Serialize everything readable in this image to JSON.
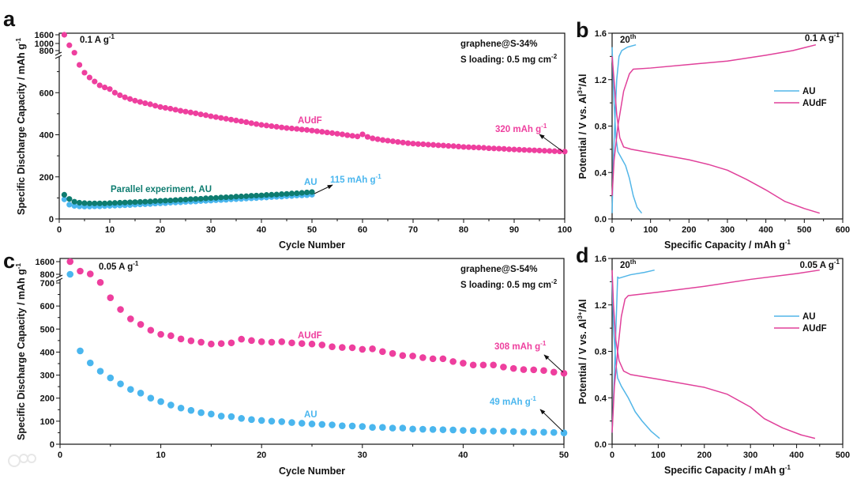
{
  "watermark": "大数跨境",
  "chart_data": [
    {
      "panel": "a",
      "type": "scatter",
      "xlabel": "Cycle Number",
      "ylabel": {
        "pre": "Specific Discharge Capacity / mAh g",
        "sup": "-1"
      },
      "xlim": [
        0,
        100
      ],
      "ylim": [
        0,
        1600
      ],
      "y_axis_break": [
        800,
        1000
      ],
      "x_ticks": [
        0,
        10,
        20,
        30,
        40,
        50,
        60,
        70,
        80,
        90,
        100
      ],
      "y_ticks": [
        0,
        200,
        400,
        600,
        800,
        1000,
        1600
      ],
      "annotations": {
        "rate": {
          "text": "0.1 A g",
          "sup": "-1"
        },
        "material": "graphene@S-34%",
        "loading": {
          "text": "S loading: 0.5 mg cm",
          "sup": "-2"
        },
        "audf_label": "AUdF",
        "audf_final": {
          "text": "320 mAh g",
          "sup": "-1"
        },
        "au_label": "AU",
        "au_final": {
          "text": "115 mAh g",
          "sup": "-1"
        },
        "parallel_label": "Parallel experiment, AU"
      },
      "series": [
        {
          "name": "AU",
          "color": "#4ab6ee",
          "x_start": 1,
          "y": [
            93,
            68,
            62,
            60,
            59,
            59,
            60,
            60,
            61,
            62,
            63,
            64,
            65,
            66,
            68,
            69,
            70,
            71,
            73,
            74,
            75,
            77,
            78,
            79,
            81,
            82,
            83,
            85,
            86,
            87,
            89,
            90,
            91,
            93,
            94,
            95,
            97,
            98,
            99,
            101,
            102,
            104,
            105,
            106,
            108,
            109,
            111,
            112,
            113,
            115
          ]
        },
        {
          "name": "Parallel experiment, AU",
          "color": "#0e7c70",
          "x_start": 1,
          "y": [
            115,
            95,
            82,
            77,
            75,
            74,
            74,
            74,
            74,
            75,
            76,
            77,
            78,
            79,
            80,
            81,
            82,
            83,
            85,
            86,
            87,
            88,
            90,
            91,
            92,
            94,
            95,
            96,
            98,
            99,
            100,
            102,
            103,
            104,
            106,
            107,
            108,
            110,
            111,
            112,
            114,
            115,
            116,
            118,
            119,
            121,
            122,
            124,
            126,
            128
          ]
        },
        {
          "name": "AUdF",
          "color": "#ee3f9e",
          "x_start": 1,
          "y": [
            1600,
            950,
            790,
            732,
            695,
            672,
            653,
            635,
            625,
            617,
            600,
            588,
            578,
            570,
            562,
            556,
            550,
            545,
            538,
            532,
            528,
            524,
            519,
            514,
            510,
            506,
            502,
            497,
            493,
            488,
            484,
            480,
            476,
            472,
            468,
            464,
            460,
            455,
            451,
            447,
            444,
            441,
            438,
            435,
            432,
            430,
            428,
            425,
            423,
            420,
            417,
            414,
            411,
            408,
            405,
            402,
            398,
            395,
            392,
            402,
            390,
            383,
            379,
            375,
            372,
            369,
            366,
            363,
            360,
            358,
            356,
            355,
            353,
            352,
            350,
            349,
            347,
            346,
            344,
            342,
            341,
            340,
            339,
            338,
            336,
            335,
            334,
            333,
            331,
            330,
            329,
            328,
            327,
            326,
            325,
            324,
            323,
            322,
            321,
            320
          ]
        }
      ]
    },
    {
      "panel": "b",
      "type": "line",
      "xlabel": "Specific Capacity  / mAh g-1",
      "xlabel_parts": {
        "pre": "Specific Capacity  / mAh g",
        "sup": "-1"
      },
      "ylabel": {
        "pre": "Potential / V vs. Al",
        "sup": "3+",
        "post": "/Al"
      },
      "xlim": [
        0,
        600
      ],
      "ylim": [
        0,
        1.6
      ],
      "x_ticks": [
        "0",
        "100",
        "200",
        "300",
        "400",
        "500",
        "600"
      ],
      "y_ticks": [
        "0.0",
        "0.4",
        "0.8",
        "1.2",
        "1.6"
      ],
      "annotations": {
        "cycle": {
          "text": "20",
          "sup": "th"
        },
        "rate": {
          "text": "0.1 A g",
          "sup": "-1"
        }
      },
      "legend": {
        "position": "right-center",
        "entries": [
          "AU",
          "AUdF"
        ]
      },
      "series": [
        {
          "name": "AU",
          "color": "#52b6e8",
          "curves": [
            [
              [
                0,
                0.05
              ],
              [
                3,
                0.5
              ],
              [
                8,
                0.9
              ],
              [
                12,
                1.2
              ],
              [
                18,
                1.4
              ],
              [
                25,
                1.45
              ],
              [
                40,
                1.48
              ],
              [
                62,
                1.5
              ]
            ],
            [
              [
                0,
                1.48
              ],
              [
                5,
                1.0
              ],
              [
                10,
                0.7
              ],
              [
                15,
                0.58
              ],
              [
                25,
                0.52
              ],
              [
                35,
                0.46
              ],
              [
                45,
                0.35
              ],
              [
                55,
                0.2
              ],
              [
                65,
                0.1
              ],
              [
                77,
                0.05
              ]
            ]
          ]
        },
        {
          "name": "AUdF",
          "color": "#e0409a",
          "curves": [
            [
              [
                0,
                0.2
              ],
              [
                5,
                0.5
              ],
              [
                15,
                0.8
              ],
              [
                30,
                1.1
              ],
              [
                45,
                1.25
              ],
              [
                55,
                1.29
              ],
              [
                100,
                1.3
              ],
              [
                200,
                1.33
              ],
              [
                300,
                1.36
              ],
              [
                400,
                1.41
              ],
              [
                470,
                1.45
              ],
              [
                530,
                1.5
              ]
            ],
            [
              [
                0,
                1.4
              ],
              [
                5,
                1.2
              ],
              [
                12,
                0.9
              ],
              [
                20,
                0.7
              ],
              [
                30,
                0.62
              ],
              [
                50,
                0.6
              ],
              [
                100,
                0.57
              ],
              [
                200,
                0.51
              ],
              [
                250,
                0.47
              ],
              [
                300,
                0.42
              ],
              [
                350,
                0.34
              ],
              [
                400,
                0.25
              ],
              [
                450,
                0.15
              ],
              [
                500,
                0.09
              ],
              [
                540,
                0.05
              ]
            ]
          ]
        }
      ]
    },
    {
      "panel": "c",
      "type": "scatter",
      "xlabel": "Cycle Number",
      "ylabel": {
        "pre": "Specific Discharge Capacity / mAh g",
        "sup": "-1"
      },
      "xlim": [
        0,
        50
      ],
      "ylim": [
        0,
        1600
      ],
      "y_axis_break": [
        700,
        800
      ],
      "x_ticks": [
        0,
        10,
        20,
        30,
        40,
        50
      ],
      "y_ticks": [
        0,
        100,
        200,
        300,
        400,
        500,
        600,
        700,
        800,
        1600
      ],
      "annotations": {
        "rate": {
          "text": "0.05 A g",
          "sup": "-1"
        },
        "material": "graphene@S-54%",
        "loading": {
          "text": "S loading: 0.5 mg cm",
          "sup": "-2"
        },
        "audf_label": "AUdF",
        "audf_final": {
          "text": "308 mAh g",
          "sup": "-1"
        },
        "au_label": "AU",
        "au_final": {
          "text": "49 mAh g",
          "sup": "-1"
        }
      },
      "series": [
        {
          "name": "AU",
          "color": "#4ab6ee",
          "x_start": 1,
          "y": [
            800,
            405,
            353,
            317,
            288,
            262,
            238,
            222,
            200,
            185,
            170,
            157,
            147,
            137,
            131,
            122,
            120,
            112,
            107,
            103,
            100,
            98,
            94,
            91,
            88,
            86,
            84,
            80,
            79,
            77,
            73,
            73,
            70,
            70,
            66,
            65,
            64,
            63,
            62,
            60,
            59,
            57,
            57,
            57,
            55,
            53,
            52,
            52,
            51,
            49
          ]
        },
        {
          "name": "AUdF",
          "color": "#ee3f9e",
          "x_start": 1,
          "y": [
            1600,
            1000,
            820,
            706,
            636,
            585,
            544,
            520,
            495,
            477,
            471,
            457,
            449,
            443,
            435,
            437,
            440,
            456,
            450,
            445,
            443,
            445,
            440,
            437,
            435,
            431,
            423,
            420,
            419,
            412,
            414,
            402,
            394,
            385,
            383,
            376,
            371,
            371,
            359,
            352,
            344,
            344,
            344,
            335,
            329,
            324,
            323,
            320,
            313,
            308
          ]
        }
      ]
    },
    {
      "panel": "d",
      "type": "line",
      "xlabel_parts": {
        "pre": "Specific Capacity  / mAh g",
        "sup": "-1"
      },
      "ylabel": {
        "pre": "Potential / V vs. Al",
        "sup": "3+",
        "post": "/Al"
      },
      "xlim": [
        0,
        500
      ],
      "ylim": [
        0,
        1.6
      ],
      "x_ticks": [
        "0",
        "100",
        "200",
        "300",
        "400",
        "500"
      ],
      "y_ticks": [
        "0.0",
        "0.4",
        "0.8",
        "1.2",
        "1.6"
      ],
      "annotations": {
        "cycle": {
          "text": "20",
          "sup": "th"
        },
        "rate": {
          "text": "0.05 A g",
          "sup": "-1"
        }
      },
      "legend": {
        "position": "right-center",
        "entries": [
          "AU",
          "AUdF"
        ]
      },
      "series": [
        {
          "name": "AU",
          "color": "#52b6e8",
          "curves": [
            [
              [
                0,
                0.1
              ],
              [
                5,
                0.6
              ],
              [
                10,
                1.2
              ],
              [
                12,
                1.44
              ],
              [
                15,
                1.43
              ],
              [
                40,
                1.46
              ],
              [
                70,
                1.48
              ],
              [
                92,
                1.5
              ]
            ],
            [
              [
                0,
                1.45
              ],
              [
                3,
                1.0
              ],
              [
                8,
                0.7
              ],
              [
                12,
                0.57
              ],
              [
                20,
                0.5
              ],
              [
                35,
                0.4
              ],
              [
                50,
                0.28
              ],
              [
                65,
                0.2
              ],
              [
                85,
                0.11
              ],
              [
                103,
                0.05
              ]
            ]
          ]
        },
        {
          "name": "AUdF",
          "color": "#e0409a",
          "curves": [
            [
              [
                0,
                0.1
              ],
              [
                5,
                0.5
              ],
              [
                12,
                0.8
              ],
              [
                20,
                1.1
              ],
              [
                28,
                1.25
              ],
              [
                35,
                1.28
              ],
              [
                100,
                1.31
              ],
              [
                200,
                1.36
              ],
              [
                300,
                1.42
              ],
              [
                400,
                1.47
              ],
              [
                450,
                1.5
              ]
            ],
            [
              [
                0,
                1.5
              ],
              [
                3,
                1.2
              ],
              [
                8,
                0.9
              ],
              [
                15,
                0.72
              ],
              [
                25,
                0.63
              ],
              [
                40,
                0.6
              ],
              [
                100,
                0.56
              ],
              [
                200,
                0.49
              ],
              [
                250,
                0.43
              ],
              [
                300,
                0.32
              ],
              [
                330,
                0.22
              ],
              [
                370,
                0.14
              ],
              [
                410,
                0.08
              ],
              [
                440,
                0.05
              ]
            ]
          ]
        }
      ]
    }
  ]
}
